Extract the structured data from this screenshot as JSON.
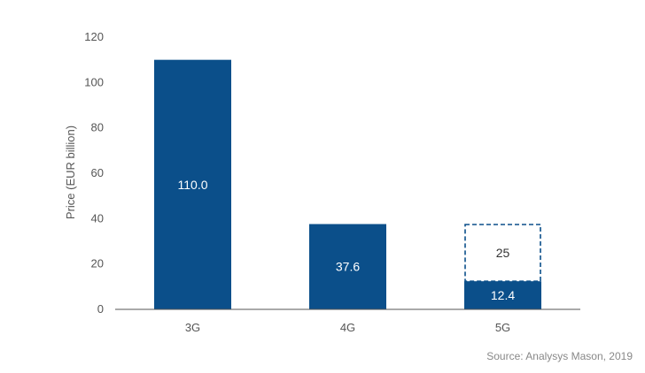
{
  "chart_data": {
    "type": "bar",
    "categories": [
      "3G",
      "4G",
      "5G"
    ],
    "series": [
      {
        "values": [
          110.0,
          37.6,
          12.4
        ],
        "labels": [
          "110.0",
          "37.6",
          "12.4"
        ],
        "style": "solid"
      },
      {
        "values": [
          0,
          0,
          25
        ],
        "labels": [
          "",
          "",
          "25"
        ],
        "style": "dashed-outline"
      }
    ],
    "ylabel": "Price (EUR billion)",
    "xlabel": "",
    "ylim": [
      0,
      120
    ],
    "yticks": [
      0,
      20,
      40,
      60,
      80,
      100,
      120
    ],
    "grid": false,
    "colors": {
      "bar": "#0b4f8a",
      "dashed": "#0b4f8a",
      "axis": "#555555"
    }
  },
  "source_note": "Source: Analysys Mason, 2019"
}
